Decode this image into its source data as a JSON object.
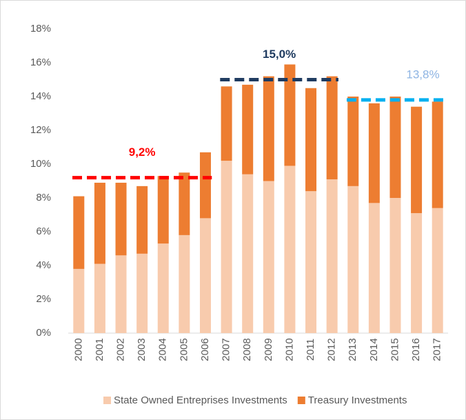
{
  "chart_data": {
    "type": "stacked_bar",
    "categories": [
      "2000",
      "2001",
      "2002",
      "2003",
      "2004",
      "2005",
      "2006",
      "2007",
      "2008",
      "2009",
      "2010",
      "2011",
      "2012",
      "2013",
      "2014",
      "2015",
      "2016",
      "2017"
    ],
    "series": [
      {
        "name": "State Owned Entreprises Investments",
        "color": "#f8cbad",
        "values": [
          3.8,
          4.1,
          4.6,
          4.7,
          5.3,
          5.8,
          6.8,
          10.2,
          9.4,
          9.0,
          9.9,
          8.4,
          9.1,
          8.7,
          7.7,
          8.0,
          7.1,
          7.4
        ]
      },
      {
        "name": "Treasury Investments",
        "color": "#ed7d31",
        "values": [
          4.3,
          4.8,
          4.3,
          4.0,
          4.0,
          3.7,
          3.9,
          4.4,
          5.3,
          6.2,
          6.0,
          6.1,
          6.1,
          5.3,
          5.9,
          6.0,
          6.3,
          6.3
        ]
      }
    ],
    "ylim": [
      0,
      18
    ],
    "yticks": [
      {
        "value": 0,
        "label": "0%"
      },
      {
        "value": 2,
        "label": "2%"
      },
      {
        "value": 4,
        "label": "4%"
      },
      {
        "value": 6,
        "label": "6%"
      },
      {
        "value": 8,
        "label": "8%"
      },
      {
        "value": 10,
        "label": "10%"
      },
      {
        "value": 12,
        "label": "12%"
      },
      {
        "value": 14,
        "label": "14%"
      },
      {
        "value": 16,
        "label": "16%"
      },
      {
        "value": 18,
        "label": "18%"
      }
    ],
    "grid": false,
    "legend": "bottom",
    "annotations": [
      {
        "label": "9,2%",
        "value": 9.2,
        "from": "2000",
        "to": "2006",
        "color": "#ff0000"
      },
      {
        "label": "15,0%",
        "value": 15.0,
        "from": "2007",
        "to": "2012",
        "color": "#1f3b60"
      },
      {
        "label": "13,8%",
        "value": 13.8,
        "from": "2013",
        "to": "2017",
        "color": "#00b0f0",
        "label_color": "#8eb4e3"
      }
    ]
  }
}
